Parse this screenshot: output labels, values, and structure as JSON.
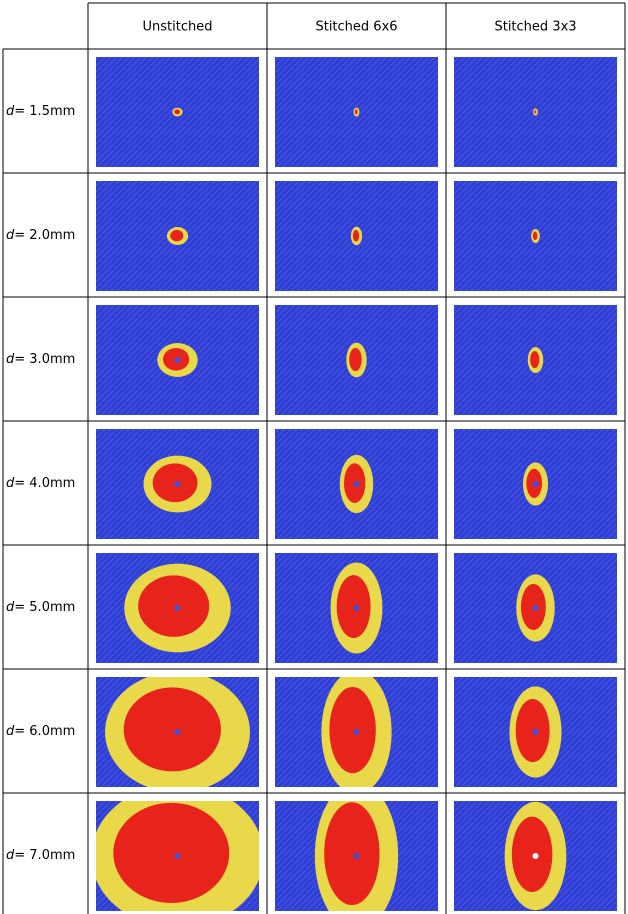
{
  "header": {
    "columns": [
      "Unstitched",
      "Stitched 6x6",
      "Stitched 3x3"
    ]
  },
  "rows": [
    {
      "variable": "d",
      "value": "= 1.5mm"
    },
    {
      "variable": "d",
      "value": "= 2.0mm"
    },
    {
      "variable": "d",
      "value": "= 3.0mm"
    },
    {
      "variable": "d",
      "value": "= 4.0mm"
    },
    {
      "variable": "d",
      "value": "= 5.0mm"
    },
    {
      "variable": "d",
      "value": "= 6.0mm"
    },
    {
      "variable": "d",
      "value": "= 7.0mm"
    }
  ]
}
